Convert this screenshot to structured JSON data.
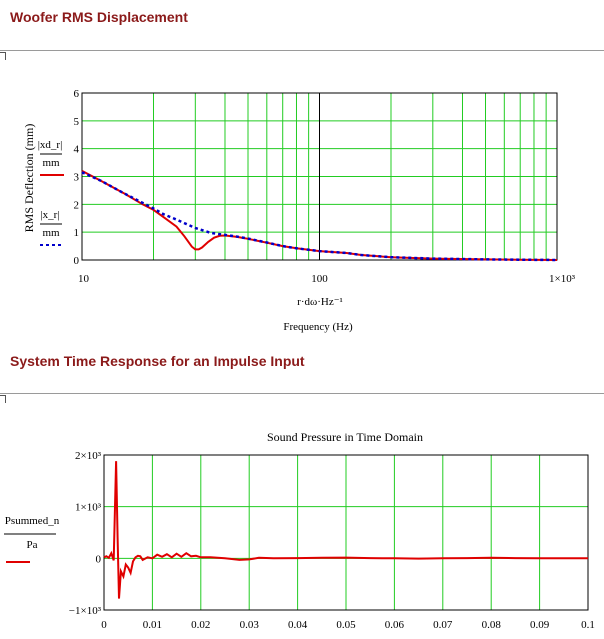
{
  "sections": {
    "woofer_title": "Woofer RMS Displacement",
    "impulse_title": "System Time Response for an Impulse Input"
  },
  "chart_data": [
    {
      "type": "line",
      "title": "",
      "xscale": "log",
      "xlim": [
        10,
        1000
      ],
      "ylim": [
        0,
        6
      ],
      "x_ticks": [
        "10",
        "100",
        "1×10³"
      ],
      "y_ticks": [
        "0",
        "1",
        "2",
        "3",
        "4",
        "5",
        "6"
      ],
      "xlabel_expr": "r·dω·Hz⁻¹",
      "xlabel": "Frequency (Hz)",
      "ylabel": "RMS Deflection (mm)",
      "legend": [
        {
          "num": "|xd_r|",
          "den": "mm",
          "color": "#e00000",
          "style": "solid"
        },
        {
          "num": "|x_r|",
          "den": "mm",
          "color": "#0000cc",
          "style": "dotted"
        }
      ],
      "grid": true,
      "series": [
        {
          "color": "#e00000",
          "style": "solid",
          "x": [
            10,
            12,
            15,
            18,
            20,
            22,
            25,
            27,
            29,
            30,
            31,
            32,
            34,
            36,
            38,
            40,
            45,
            50,
            60,
            70,
            80,
            100,
            130,
            150,
            200,
            300,
            500,
            700,
            1000
          ],
          "y": [
            3.2,
            2.85,
            2.4,
            2.0,
            1.8,
            1.55,
            1.2,
            0.85,
            0.48,
            0.38,
            0.38,
            0.45,
            0.65,
            0.8,
            0.87,
            0.88,
            0.83,
            0.76,
            0.62,
            0.5,
            0.42,
            0.32,
            0.25,
            0.18,
            0.1,
            0.05,
            0.02,
            0.01,
            0.0
          ]
        },
        {
          "color": "#0000cc",
          "style": "dotted",
          "x": [
            10,
            12,
            15,
            18,
            20,
            22,
            25,
            30,
            35,
            40,
            45,
            50,
            60,
            70,
            80,
            100,
            130,
            150,
            200,
            300,
            500,
            700,
            1000
          ],
          "y": [
            3.15,
            2.85,
            2.4,
            2.05,
            1.85,
            1.65,
            1.45,
            1.15,
            0.97,
            0.9,
            0.84,
            0.77,
            0.63,
            0.5,
            0.42,
            0.32,
            0.25,
            0.18,
            0.1,
            0.05,
            0.02,
            0.01,
            0.0
          ]
        }
      ]
    },
    {
      "type": "line",
      "title": "Sound Pressure in Time Domain",
      "xlim": [
        0,
        0.1
      ],
      "ylim": [
        -1000,
        2000
      ],
      "x_ticks": [
        "0",
        "0.01",
        "0.02",
        "0.03",
        "0.04",
        "0.05",
        "0.06",
        "0.07",
        "0.08",
        "0.09",
        "0.1"
      ],
      "y_ticks": [
        "2×10³",
        "1×10³",
        "0",
        "−1×10³"
      ],
      "legend": [
        {
          "num": "Psummed_n",
          "den": "Pa",
          "color": "#e00000",
          "style": "solid"
        }
      ],
      "grid": true,
      "series": [
        {
          "color": "#e00000",
          "style": "solid",
          "x": [
            0,
            0.0005,
            0.001,
            0.0015,
            0.002,
            0.0025,
            0.0028,
            0.0031,
            0.0035,
            0.004,
            0.0045,
            0.005,
            0.0055,
            0.006,
            0.0065,
            0.007,
            0.0075,
            0.008,
            0.009,
            0.01,
            0.011,
            0.012,
            0.013,
            0.014,
            0.015,
            0.016,
            0.017,
            0.018,
            0.019,
            0.02,
            0.022,
            0.025,
            0.028,
            0.03,
            0.032,
            0.035,
            0.04,
            0.045,
            0.05,
            0.055,
            0.06,
            0.065,
            0.07,
            0.075,
            0.08,
            0.085,
            0.09,
            0.095,
            0.1
          ],
          "y": [
            20,
            40,
            10,
            100,
            -40,
            1880,
            400,
            -780,
            -250,
            -350,
            -120,
            -180,
            -280,
            -60,
            20,
            50,
            40,
            -30,
            20,
            0,
            70,
            30,
            80,
            20,
            90,
            30,
            100,
            40,
            50,
            20,
            20,
            0,
            -30,
            -20,
            10,
            0,
            5,
            10,
            15,
            5,
            0,
            -5,
            0,
            5,
            10,
            5,
            0,
            0,
            0
          ]
        }
      ]
    }
  ]
}
